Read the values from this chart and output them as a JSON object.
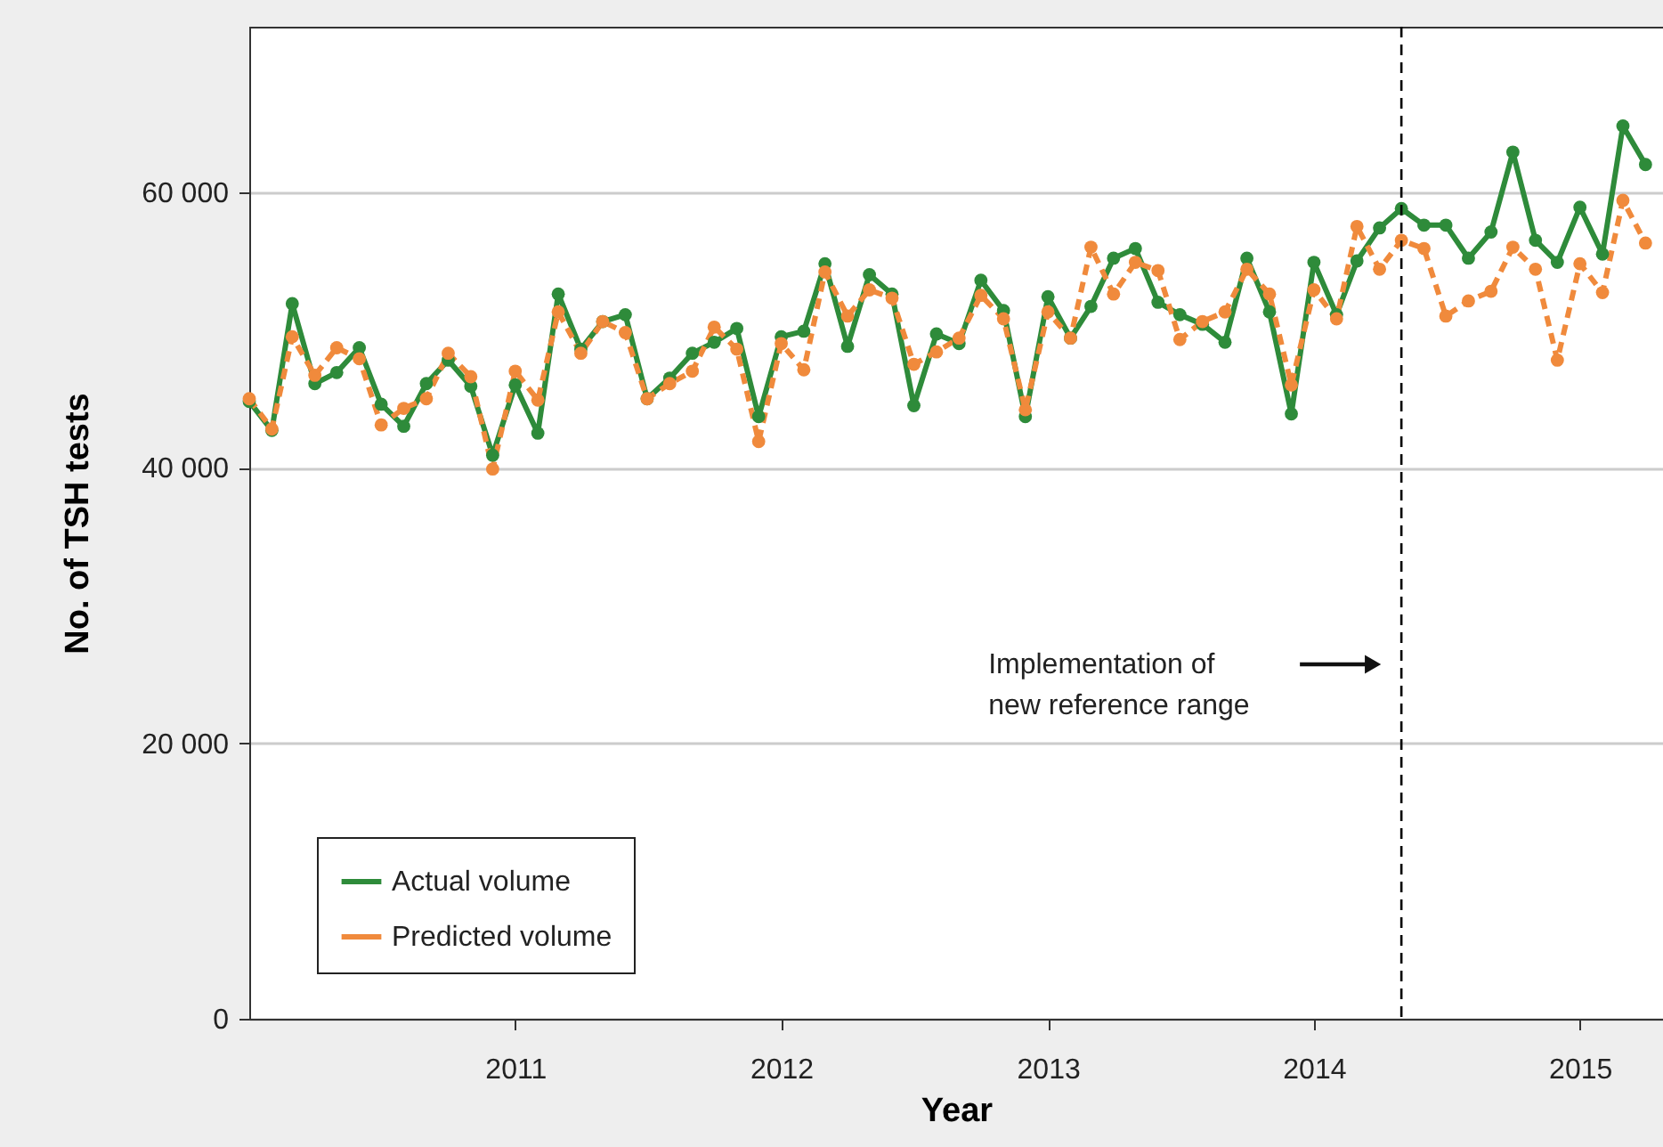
{
  "chart_data": {
    "type": "line",
    "xlabel": "Year",
    "ylabel": "No. of TSH tests",
    "x": [
      "2010-01",
      "2010-02",
      "2010-03",
      "2010-04",
      "2010-05",
      "2010-06",
      "2010-07",
      "2010-08",
      "2010-09",
      "2010-10",
      "2010-11",
      "2010-12",
      "2011-01",
      "2011-02",
      "2011-03",
      "2011-04",
      "2011-05",
      "2011-06",
      "2011-07",
      "2011-08",
      "2011-09",
      "2011-10",
      "2011-11",
      "2011-12",
      "2012-01",
      "2012-02",
      "2012-03",
      "2012-04",
      "2012-05",
      "2012-06",
      "2012-07",
      "2012-08",
      "2012-09",
      "2012-10",
      "2012-11",
      "2012-12",
      "2013-01",
      "2013-02",
      "2013-03",
      "2013-04",
      "2013-05",
      "2013-06",
      "2013-07",
      "2013-08",
      "2013-09",
      "2013-10",
      "2013-11",
      "2013-12",
      "2014-01",
      "2014-02",
      "2014-03",
      "2014-04",
      "2014-05",
      "2014-06",
      "2014-07",
      "2014-08",
      "2014-09",
      "2014-10",
      "2014-11",
      "2014-12",
      "2015-01",
      "2015-02",
      "2015-03",
      "2015-04"
    ],
    "series": [
      {
        "name": "Actual volume",
        "color": "#2e8b3a",
        "line_style": "solid",
        "values": [
          44800,
          42700,
          51900,
          46100,
          46900,
          48700,
          44600,
          43000,
          46100,
          47800,
          45900,
          40900,
          46000,
          42500,
          52600,
          48600,
          50600,
          51100,
          45000,
          46500,
          48300,
          49100,
          50100,
          43700,
          49500,
          49900,
          54800,
          48800,
          54000,
          52600,
          44500,
          49700,
          49000,
          53600,
          51400,
          43700,
          52400,
          49400,
          51700,
          55200,
          55900,
          52000,
          51100,
          50400,
          49100,
          55200,
          51300,
          43900,
          54900,
          51100,
          55000,
          57400,
          58800,
          57600,
          57600,
          55200,
          57100,
          62900,
          56500,
          54900,
          58900,
          55500,
          64800,
          62000
        ]
      },
      {
        "name": "Predicted volume",
        "color": "#f08a3c",
        "line_style": "dashed",
        "values": [
          45000,
          42800,
          49500,
          46700,
          48700,
          47900,
          43100,
          44300,
          45000,
          48300,
          46600,
          39900,
          47000,
          44900,
          51300,
          48300,
          50600,
          49800,
          45000,
          46100,
          47000,
          50200,
          48600,
          41900,
          49000,
          47100,
          54200,
          51000,
          52900,
          52300,
          47500,
          48400,
          49400,
          52500,
          50800,
          44200,
          51300,
          49400,
          56000,
          52600,
          54900,
          54300,
          49300,
          50600,
          51300,
          54400,
          52600,
          46000,
          52900,
          50800,
          57500,
          54400,
          56500,
          55900,
          51000,
          52100,
          52800,
          56000,
          54400,
          47800,
          54800,
          52700,
          59400,
          56300
        ]
      }
    ],
    "xlim": [
      "2010-01-01",
      "2015-04-25"
    ],
    "xticks": [
      "2011",
      "2012",
      "2013",
      "2014",
      "2015"
    ],
    "ylim": [
      0,
      72000
    ],
    "yticks": [
      0,
      {
        "value": 20000,
        "label": "20 000"
      },
      {
        "value": 40000,
        "label": "40 000"
      },
      {
        "value": 60000,
        "label": "60 000"
      }
    ],
    "ref_lines": [
      {
        "axis": "x",
        "value": "2014-05",
        "color": "#000000",
        "line_style": "dashed"
      }
    ],
    "annotations": [
      "Implementation of\nnew reference range"
    ],
    "grid": "y",
    "legend": "bottom left",
    "marker": "circle"
  }
}
